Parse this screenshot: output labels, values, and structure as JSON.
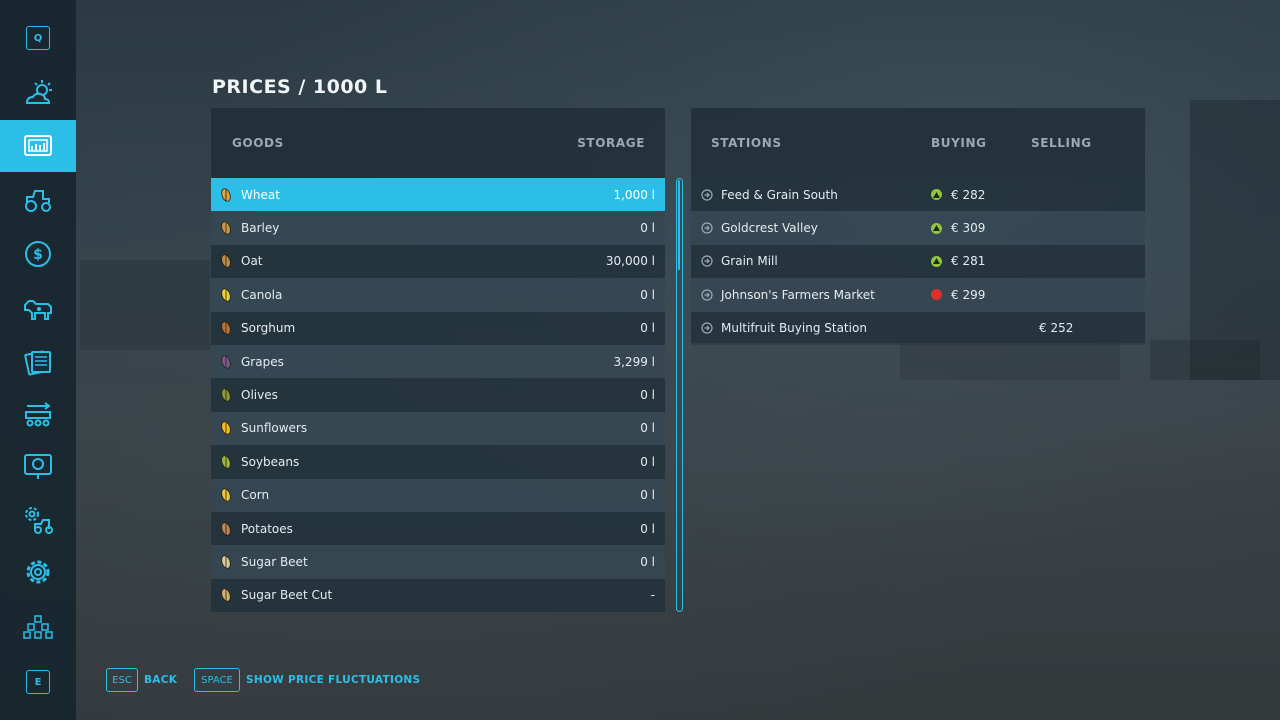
{
  "title": "PRICES / 1000 L",
  "sidebar": {
    "top_key": "Q",
    "bottom_key": "E",
    "items": [
      {
        "icon": "weather-icon"
      },
      {
        "icon": "prices-icon"
      },
      {
        "icon": "tractor-icon"
      },
      {
        "icon": "finance-icon"
      },
      {
        "icon": "animals-icon"
      },
      {
        "icon": "contracts-icon"
      },
      {
        "icon": "production-icon"
      },
      {
        "icon": "help-icon"
      },
      {
        "icon": "vehicle-settings-icon"
      },
      {
        "icon": "settings-icon"
      },
      {
        "icon": "multiplayer-icon"
      }
    ]
  },
  "goods": {
    "headers": {
      "goods": "GOODS",
      "storage": "STORAGE"
    },
    "rows": [
      {
        "name": "Wheat",
        "storage": "1,000 l",
        "color": "#d9a441"
      },
      {
        "name": "Barley",
        "storage": "0 l",
        "color": "#c9994a"
      },
      {
        "name": "Oat",
        "storage": "30,000 l",
        "color": "#c08d4c"
      },
      {
        "name": "Canola",
        "storage": "0 l",
        "color": "#e6d33a"
      },
      {
        "name": "Sorghum",
        "storage": "0 l",
        "color": "#b8743d"
      },
      {
        "name": "Grapes",
        "storage": "3,299 l",
        "color": "#7a5a8a"
      },
      {
        "name": "Olives",
        "storage": "0 l",
        "color": "#8a9a3a"
      },
      {
        "name": "Sunflowers",
        "storage": "0 l",
        "color": "#f0c020"
      },
      {
        "name": "Soybeans",
        "storage": "0 l",
        "color": "#9ab845"
      },
      {
        "name": "Corn",
        "storage": "0 l",
        "color": "#e8c840"
      },
      {
        "name": "Potatoes",
        "storage": "0 l",
        "color": "#b8875a"
      },
      {
        "name": "Sugar Beet",
        "storage": "0 l",
        "color": "#d8c8a0"
      },
      {
        "name": "Sugar Beet Cut",
        "storage": "-",
        "color": "#d0b070"
      }
    ]
  },
  "stations": {
    "headers": {
      "stations": "STATIONS",
      "buying": "BUYING",
      "selling": "SELLING"
    },
    "rows": [
      {
        "name": "Feed & Grain South",
        "trend": "up",
        "buying": "€ 282",
        "selling": ""
      },
      {
        "name": "Goldcrest Valley",
        "trend": "up",
        "buying": "€ 309",
        "selling": ""
      },
      {
        "name": "Grain Mill",
        "trend": "up",
        "buying": "€ 281",
        "selling": ""
      },
      {
        "name": "Johnson's Farmers Market",
        "trend": "down",
        "buying": "€ 299",
        "selling": ""
      },
      {
        "name": "Multifruit Buying Station",
        "trend": "",
        "buying": "",
        "selling": "€ 252"
      }
    ]
  },
  "footer": {
    "back_key": "ESC",
    "back_label": "BACK",
    "fluct_key": "SPACE",
    "fluct_label": "SHOW PRICE FLUCTUATIONS"
  },
  "colors": {
    "accent": "#2bbfe8",
    "up": "#8fc63e",
    "down": "#e0302a"
  }
}
